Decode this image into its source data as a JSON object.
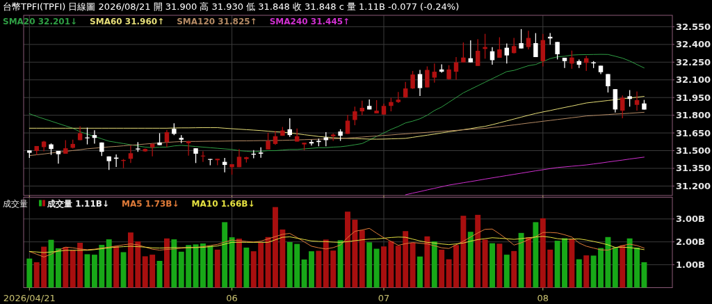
{
  "chart_data": [
    {
      "type": "candlestick",
      "title": "台幣TPFI(TPFI)  日線圖  2026/08/21  開 31.900  高 31.930  低 31.848  收 31.848 c  量 1.11B  -0.077 (-0.24%)",
      "categories": [
        "2026/04/21",
        null,
        null,
        null,
        null,
        null,
        null,
        null,
        null,
        null,
        null,
        null,
        null,
        null,
        null,
        null,
        null,
        null,
        null,
        null,
        null,
        null,
        null,
        null,
        null,
        null,
        null,
        null,
        "06",
        null,
        null,
        null,
        null,
        null,
        null,
        null,
        null,
        null,
        null,
        null,
        null,
        null,
        null,
        null,
        null,
        null,
        null,
        null,
        null,
        "07",
        null,
        null,
        null,
        null,
        null,
        null,
        null,
        null,
        null,
        null,
        null,
        null,
        null,
        null,
        null,
        null,
        null,
        null,
        null,
        null,
        null,
        "08",
        null,
        null,
        null,
        null,
        null,
        null,
        null,
        null,
        null,
        null,
        null,
        null,
        null,
        null
      ],
      "ohlc": [
        [
          31.502,
          31.502,
          31.439,
          31.482
        ],
        [
          31.498,
          31.539,
          31.464,
          31.539
        ],
        [
          31.53,
          31.583,
          31.494,
          31.577
        ],
        [
          31.553,
          31.561,
          31.464,
          31.514
        ],
        [
          31.498,
          31.498,
          31.389,
          31.47
        ],
        [
          31.474,
          31.589,
          31.474,
          31.52
        ],
        [
          31.524,
          31.593,
          31.518,
          31.557
        ],
        [
          31.589,
          31.707,
          31.589,
          31.648
        ],
        [
          31.612,
          31.695,
          31.553,
          31.608
        ],
        [
          31.632,
          31.672,
          31.559,
          31.608
        ],
        [
          31.569,
          31.569,
          31.455,
          31.49
        ],
        [
          31.451,
          31.451,
          31.336,
          31.411
        ],
        [
          31.441,
          31.468,
          31.362,
          31.431
        ],
        [
          31.413,
          31.429,
          31.352,
          31.421
        ],
        [
          31.431,
          31.543,
          31.395,
          31.478
        ],
        [
          31.518,
          31.573,
          31.49,
          31.51
        ],
        [
          31.494,
          31.518,
          31.49,
          31.514
        ],
        [
          31.528,
          31.563,
          31.451,
          31.557
        ],
        [
          31.569,
          31.648,
          31.547,
          31.547
        ],
        [
          31.573,
          31.676,
          31.53,
          31.656
        ],
        [
          31.685,
          31.731,
          31.632,
          31.642
        ],
        [
          31.608,
          31.632,
          31.563,
          31.593
        ],
        [
          31.563,
          31.583,
          31.458,
          31.579
        ],
        [
          31.52,
          31.52,
          31.395,
          31.474
        ],
        [
          31.455,
          31.494,
          31.405,
          31.458
        ],
        [
          31.429,
          31.429,
          31.376,
          31.425
        ],
        [
          31.419,
          31.431,
          31.376,
          31.431
        ],
        [
          31.405,
          31.438,
          31.316,
          31.379
        ],
        [
          31.36,
          31.385,
          31.296,
          31.385
        ],
        [
          31.36,
          31.514,
          31.36,
          31.448
        ],
        [
          31.429,
          31.448,
          31.399,
          31.444
        ],
        [
          31.474,
          31.504,
          31.435,
          31.466
        ],
        [
          31.484,
          31.529,
          31.44,
          31.474
        ],
        [
          31.51,
          31.652,
          31.51,
          31.583
        ],
        [
          31.557,
          31.667,
          31.549,
          31.622
        ],
        [
          31.626,
          31.701,
          31.626,
          31.671
        ],
        [
          31.681,
          31.774,
          31.616,
          31.632
        ],
        [
          31.577,
          31.687,
          31.577,
          31.622
        ],
        [
          31.553,
          31.567,
          31.504,
          31.567
        ],
        [
          31.573,
          31.592,
          31.543,
          31.561
        ],
        [
          31.583,
          31.602,
          31.537,
          31.573
        ],
        [
          31.612,
          31.656,
          31.537,
          31.589
        ],
        [
          31.622,
          31.646,
          31.583,
          31.636
        ],
        [
          31.662,
          31.681,
          31.583,
          31.626
        ],
        [
          31.642,
          31.804,
          31.642,
          31.754
        ],
        [
          31.76,
          31.873,
          31.715,
          31.833
        ],
        [
          31.833,
          31.924,
          31.8,
          31.863
        ],
        [
          31.879,
          31.934,
          31.849,
          31.849
        ],
        [
          31.816,
          31.928,
          31.816,
          31.839
        ],
        [
          31.806,
          31.898,
          31.806,
          31.879
        ],
        [
          31.879,
          31.948,
          31.833,
          31.912
        ],
        [
          31.912,
          31.997,
          31.904,
          31.932
        ],
        [
          31.952,
          32.082,
          31.948,
          32.027
        ],
        [
          32.027,
          32.175,
          32.023,
          32.145
        ],
        [
          32.149,
          32.184,
          31.963,
          32.03
        ],
        [
          32.036,
          32.214,
          32.036,
          32.184
        ],
        [
          32.119,
          32.238,
          32.076,
          32.169
        ],
        [
          32.188,
          32.232,
          32.161,
          32.169
        ],
        [
          32.106,
          32.224,
          32.102,
          32.188
        ],
        [
          32.169,
          32.293,
          32.102,
          32.248
        ],
        [
          32.248,
          32.417,
          32.248,
          32.289
        ],
        [
          32.283,
          32.435,
          32.248,
          32.248
        ],
        [
          32.218,
          32.445,
          32.218,
          32.346
        ],
        [
          32.362,
          32.49,
          32.279,
          32.378
        ],
        [
          32.342,
          32.378,
          32.228,
          32.267
        ],
        [
          32.287,
          32.461,
          32.287,
          32.358
        ],
        [
          32.372,
          32.408,
          32.238,
          32.307
        ],
        [
          32.327,
          32.455,
          32.323,
          32.386
        ],
        [
          32.411,
          32.53,
          32.366,
          32.366
        ],
        [
          32.378,
          32.516,
          32.358,
          32.455
        ],
        [
          32.411,
          32.496,
          32.293,
          32.293
        ],
        [
          32.259,
          32.49,
          32.214,
          32.437
        ],
        [
          32.465,
          32.496,
          32.398,
          32.451
        ],
        [
          32.421,
          32.421,
          32.273,
          32.317
        ],
        [
          32.287,
          32.287,
          32.2,
          32.259
        ],
        [
          32.238,
          32.348,
          32.194,
          32.289
        ],
        [
          32.259,
          32.273,
          32.2,
          32.228
        ],
        [
          32.244,
          32.303,
          32.175,
          32.283
        ],
        [
          32.248,
          32.259,
          32.2,
          32.24
        ],
        [
          32.22,
          32.22,
          32.149,
          32.165
        ],
        [
          32.149,
          32.149,
          31.993,
          32.046
        ],
        [
          32.021,
          32.021,
          31.823,
          31.849
        ],
        [
          31.839,
          31.967,
          31.774,
          31.948
        ],
        [
          31.961,
          32.013,
          31.873,
          31.938
        ],
        [
          31.888,
          32.001,
          31.839,
          31.928
        ],
        [
          31.9,
          31.93,
          31.848,
          31.848
        ]
      ],
      "colors": [
        "#ffffff",
        "#b01010",
        "#b01010",
        "#ffffff",
        "#ffffff",
        "#b01010",
        "#b01010",
        "#b01010",
        "#ffffff",
        "#ffffff",
        "#ffffff",
        "#ffffff",
        "#ffffff",
        "#b01010",
        "#b01010",
        "#ffffff",
        "#b01010",
        "#b01010",
        "#ffffff",
        "#b01010",
        "#ffffff",
        "#ffffff",
        "#b01010",
        "#ffffff",
        "#b01010",
        "#ffffff",
        "#b01010",
        "#ffffff",
        "#b01010",
        "#b01010",
        "#b01010",
        "#ffffff",
        "#ffffff",
        "#b01010",
        "#b01010",
        "#b01010",
        "#ffffff",
        "#b01010",
        "#b01010",
        "#ffffff",
        "#ffffff",
        "#ffffff",
        "#b01010",
        "#ffffff",
        "#b01010",
        "#b01010",
        "#b01010",
        "#ffffff",
        "#b01010",
        "#b01010",
        "#b01010",
        "#b01010",
        "#b01010",
        "#b01010",
        "#ffffff",
        "#b01010",
        "#b01010",
        "#ffffff",
        "#b01010",
        "#b01010",
        "#b01010",
        "#ffffff",
        "#b01010",
        "#b01010",
        "#ffffff",
        "#b01010",
        "#ffffff",
        "#b01010",
        "#ffffff",
        "#b01010",
        "#ffffff",
        "#b01010",
        "#ffffff",
        "#ffffff",
        "#ffffff",
        "#b01010",
        "#ffffff",
        "#b01010",
        "#ffffff",
        "#ffffff",
        "#ffffff",
        "#ffffff",
        "#b01010",
        "#ffffff",
        "#b01010",
        "#ffffff"
      ],
      "series": [
        {
          "type": "line",
          "name": "SMA20 32.201↓",
          "color": "#2f9e44",
          "values": [
            31.813,
            31.79,
            31.77,
            31.75,
            31.73,
            31.71,
            31.69,
            31.66,
            31.64,
            31.62,
            31.6,
            31.58,
            31.57,
            31.56,
            31.55,
            31.54,
            31.53,
            31.525,
            31.53,
            31.53,
            31.54,
            31.545,
            31.54,
            31.535,
            31.53,
            31.525,
            31.52,
            31.515,
            31.51,
            31.5,
            31.495,
            31.49,
            31.495,
            31.5,
            31.5,
            31.505,
            31.51,
            31.51,
            31.515,
            31.52,
            31.525,
            31.525,
            31.53,
            31.533,
            31.54,
            31.55,
            31.56,
            31.59,
            31.62,
            31.65,
            31.68,
            31.705,
            31.735,
            31.75,
            31.77,
            31.8,
            31.84,
            31.87,
            31.91,
            31.95,
            31.99,
            32.02,
            32.05,
            32.08,
            32.11,
            32.14,
            32.17,
            32.18,
            32.2,
            32.22,
            32.23,
            32.255,
            32.28,
            32.295,
            32.3,
            32.31,
            32.313,
            32.314,
            32.315,
            32.316,
            32.315,
            32.3,
            32.284,
            32.26,
            32.23,
            32.201
          ]
        },
        {
          "type": "line",
          "name": "SMA60 31.960↑",
          "color": "#e6de78",
          "values": [
            31.69,
            31.69,
            31.69,
            31.69,
            31.69,
            31.69,
            31.69,
            31.69,
            31.69,
            31.69,
            31.69,
            31.69,
            31.69,
            31.69,
            31.69,
            31.69,
            31.69,
            31.69,
            31.69,
            31.69,
            31.692,
            31.693,
            31.693,
            31.694,
            31.695,
            31.695,
            31.695,
            31.69,
            31.686,
            31.682,
            31.678,
            31.674,
            31.67,
            31.665,
            31.66,
            31.657,
            31.65,
            31.643,
            31.635,
            31.628,
            31.62,
            31.615,
            31.61,
            31.606,
            31.604,
            31.602,
            31.6,
            31.598,
            31.597,
            31.598,
            31.6,
            31.602,
            31.604,
            31.613,
            31.622,
            31.631,
            31.64,
            31.65,
            31.66,
            31.668,
            31.678,
            31.687,
            31.697,
            31.706,
            31.72,
            31.736,
            31.752,
            31.768,
            31.784,
            31.8,
            31.815,
            31.828,
            31.84,
            31.853,
            31.866,
            31.878,
            31.891,
            31.904,
            31.911,
            31.918,
            31.925,
            31.932,
            31.939,
            31.946,
            31.953,
            31.96
          ]
        },
        {
          "type": "line",
          "name": "SMA120 31.825↑",
          "color": "#b48a64",
          "values": [
            31.458,
            31.465,
            31.472,
            31.48,
            31.487,
            31.494,
            31.501,
            31.508,
            31.516,
            31.521,
            31.526,
            31.532,
            31.536,
            31.541,
            31.546,
            31.551,
            31.556,
            31.561,
            31.565,
            31.57,
            31.574,
            31.577,
            31.578,
            31.578,
            31.579,
            31.58,
            31.58,
            31.581,
            31.582,
            31.583,
            31.583,
            31.584,
            31.585,
            31.585,
            31.586,
            31.587,
            31.589,
            31.591,
            31.593,
            31.595,
            31.597,
            31.599,
            31.601,
            31.603,
            31.607,
            31.611,
            31.615,
            31.62,
            31.624,
            31.629,
            31.633,
            31.638,
            31.642,
            31.647,
            31.651,
            31.655,
            31.66,
            31.664,
            31.668,
            31.672,
            31.676,
            31.681,
            31.685,
            31.689,
            31.696,
            31.703,
            31.711,
            31.718,
            31.726,
            31.734,
            31.741,
            31.749,
            31.756,
            31.764,
            31.771,
            31.779,
            31.786,
            31.794,
            31.798,
            31.802,
            31.806,
            31.81,
            31.813,
            31.817,
            31.821,
            31.825
          ]
        },
        {
          "type": "line",
          "name": "SMA240 31.445↑",
          "color": "#d030d0",
          "values": [
            null,
            null,
            null,
            null,
            null,
            null,
            null,
            null,
            null,
            null,
            null,
            null,
            null,
            null,
            null,
            null,
            null,
            null,
            null,
            null,
            null,
            null,
            null,
            null,
            null,
            null,
            null,
            null,
            null,
            null,
            null,
            null,
            null,
            null,
            null,
            null,
            null,
            null,
            null,
            null,
            null,
            null,
            null,
            null,
            null,
            null,
            null,
            null,
            null,
            null,
            null,
            null,
            31.126,
            31.14,
            31.153,
            31.167,
            31.181,
            31.194,
            31.208,
            31.218,
            31.228,
            31.238,
            31.248,
            31.259,
            31.269,
            31.279,
            31.289,
            31.299,
            31.309,
            31.319,
            31.329,
            31.338,
            31.348,
            31.357,
            31.362,
            31.368,
            31.373,
            31.379,
            31.387,
            31.395,
            31.404,
            31.412,
            31.42,
            31.429,
            31.437,
            31.445
          ]
        }
      ],
      "ylim": [
        31.12,
        32.647
      ],
      "yticks": [
        {
          "value": 31.2,
          "label": "31.200"
        },
        {
          "value": 31.35,
          "label": "31.350"
        },
        {
          "value": 31.5,
          "label": "31.500"
        },
        {
          "value": 31.65,
          "label": "31.650"
        },
        {
          "value": 31.8,
          "label": "31.800"
        },
        {
          "value": 31.95,
          "label": "31.950"
        },
        {
          "value": 32.1,
          "label": "32.100"
        },
        {
          "value": 32.25,
          "label": "32.250"
        },
        {
          "value": 32.4,
          "label": "32.400"
        },
        {
          "value": 32.55,
          "label": "32.550"
        }
      ],
      "grid": true,
      "legend": "top left",
      "tick_labels": "y"
    },
    {
      "type": "bar",
      "title": "成交量",
      "categories": [
        "2026/04/21",
        null,
        null,
        null,
        null,
        null,
        null,
        null,
        null,
        null,
        null,
        null,
        null,
        null,
        null,
        null,
        null,
        null,
        null,
        null,
        null,
        null,
        null,
        null,
        null,
        null,
        null,
        null,
        "06",
        null,
        null,
        null,
        null,
        null,
        null,
        null,
        null,
        null,
        null,
        null,
        null,
        null,
        null,
        null,
        null,
        null,
        null,
        null,
        null,
        "07",
        null,
        null,
        null,
        null,
        null,
        null,
        null,
        null,
        null,
        null,
        null,
        null,
        null,
        null,
        null,
        null,
        null,
        null,
        null,
        null,
        null,
        "08",
        null,
        null,
        null,
        null,
        null,
        null,
        null,
        null,
        null,
        null,
        null,
        null,
        null,
        null
      ],
      "series": [
        {
          "type": "bar",
          "name": "成交量 1.11B↓",
          "values": [
            1.27,
            1.11,
            1.79,
            2.09,
            1.72,
            1.77,
            1.65,
            1.96,
            1.46,
            1.44,
            1.87,
            2.11,
            1.81,
            1.55,
            2.41,
            2.02,
            1.37,
            1.44,
            1.17,
            2.15,
            2.11,
            1.57,
            1.86,
            1.89,
            1.93,
            1.83,
            1.66,
            2.86,
            2.2,
            2.14,
            1.75,
            1.59,
            1.96,
            2.21,
            3.52,
            2.54,
            1.99,
            1.91,
            1.23,
            1.59,
            1.61,
            2.1,
            1.62,
            2.07,
            3.32,
            2.97,
            2.51,
            1.98,
            1.7,
            1.8,
            2.03,
            1.83,
            2.47,
            1.96,
            1.36,
            2.24,
            2.02,
            1.66,
            1.24,
            1.86,
            3.14,
            2.44,
            3.18,
            2.1,
            1.94,
            1.92,
            1.44,
            1.6,
            2.39,
            2.2,
            2.86,
            3.03,
            1.66,
            2.05,
            2.16,
            2.13,
            1.24,
            1.41,
            1.4,
            1.73,
            2.21,
            1.77,
            1.85,
            2.15,
            1.75,
            1.11
          ],
          "colors": [
            "#18a818",
            "#a80f0f",
            "#a80f0f",
            "#18a818",
            "#18a818",
            "#a80f0f",
            "#a80f0f",
            "#a80f0f",
            "#18a818",
            "#18a818",
            "#18a818",
            "#18a818",
            "#a80f0f",
            "#18a818",
            "#a80f0f",
            "#a80f0f",
            "#a80f0f",
            "#a80f0f",
            "#18a818",
            "#a80f0f",
            "#18a818",
            "#18a818",
            "#18a818",
            "#18a818",
            "#18a818",
            "#18a818",
            "#a80f0f",
            "#18a818",
            "#18a818",
            "#a80f0f",
            "#18a818",
            "#a80f0f",
            "#a80f0f",
            "#a80f0f",
            "#a80f0f",
            "#a80f0f",
            "#18a818",
            "#18a818",
            "#18a818",
            "#18a818",
            "#a80f0f",
            "#a80f0f",
            "#a80f0f",
            "#18a818",
            "#a80f0f",
            "#a80f0f",
            "#a80f0f",
            "#18a818",
            "#18a818",
            "#a80f0f",
            "#a80f0f",
            "#a80f0f",
            "#a80f0f",
            "#a80f0f",
            "#18a818",
            "#a80f0f",
            "#18a818",
            "#a80f0f",
            "#a80f0f",
            "#a80f0f",
            "#a80f0f",
            "#18a818",
            "#a80f0f",
            "#a80f0f",
            "#18a818",
            "#a80f0f",
            "#18a818",
            "#a80f0f",
            "#18a818",
            "#a80f0f",
            "#18a818",
            "#a80f0f",
            "#a80f0f",
            "#18a818",
            "#18a818",
            "#a80f0f",
            "#18a818",
            "#a80f0f",
            "#18a818",
            "#18a818",
            "#18a818",
            "#18a818",
            "#a80f0f",
            "#18a818",
            "#18a818",
            "#18a818"
          ]
        },
        {
          "type": "line",
          "name": "MA5 1.73B↓",
          "color": "#e07b39",
          "values": [
            1.58,
            1.46,
            1.34,
            1.46,
            1.63,
            1.77,
            1.74,
            1.69,
            1.66,
            1.68,
            1.73,
            1.77,
            1.82,
            1.87,
            1.91,
            1.87,
            1.77,
            1.68,
            1.64,
            1.67,
            1.69,
            1.72,
            1.75,
            1.76,
            1.79,
            1.84,
            1.89,
            1.99,
            2.08,
            2.05,
            2.02,
            1.99,
            2.03,
            2.13,
            2.23,
            2.33,
            2.37,
            2.19,
            2.0,
            1.81,
            1.74,
            1.69,
            1.75,
            1.86,
            2.19,
            2.46,
            2.52,
            2.59,
            2.38,
            2.18,
            2.02,
            1.85,
            1.92,
            1.97,
            1.94,
            1.91,
            1.83,
            1.74,
            1.71,
            1.87,
            2.03,
            2.21,
            2.39,
            2.55,
            2.56,
            2.35,
            2.12,
            1.86,
            1.96,
            2.1,
            2.23,
            2.41,
            2.41,
            2.39,
            2.31,
            2.21,
            1.95,
            1.81,
            1.73,
            1.65,
            1.64,
            1.74,
            1.84,
            1.9,
            1.84,
            1.73
          ]
        },
        {
          "type": "line",
          "name": "MA10 1.66B↓",
          "color": "#e4e040",
          "values": [
            1.58,
            1.56,
            1.53,
            1.56,
            1.59,
            1.63,
            1.63,
            1.63,
            1.63,
            1.66,
            1.7,
            1.74,
            1.77,
            1.79,
            1.81,
            1.79,
            1.77,
            1.74,
            1.73,
            1.74,
            1.75,
            1.75,
            1.75,
            1.75,
            1.76,
            1.79,
            1.82,
            1.9,
            1.98,
            1.98,
            1.98,
            1.98,
            1.98,
            1.98,
            2.09,
            2.2,
            2.22,
            2.16,
            2.1,
            2.04,
            2.02,
            2.01,
            1.99,
            1.98,
            2.01,
            2.05,
            2.09,
            2.12,
            2.13,
            2.16,
            2.19,
            2.21,
            2.2,
            2.12,
            2.04,
            1.98,
            1.95,
            1.91,
            1.88,
            1.91,
            1.95,
            2.03,
            2.1,
            2.14,
            2.18,
            2.16,
            2.14,
            2.11,
            2.14,
            2.18,
            2.21,
            2.24,
            2.2,
            2.14,
            2.11,
            2.12,
            2.13,
            2.08,
            2.02,
            1.95,
            1.87,
            1.76,
            1.77,
            1.75,
            1.71,
            1.66
          ]
        }
      ],
      "ylim": [
        0,
        3.95
      ],
      "yticks": [
        {
          "value": 1,
          "label": "1.00B"
        },
        {
          "value": 2,
          "label": "2.00B"
        },
        {
          "value": 3,
          "label": "3.00B"
        }
      ],
      "grid": true,
      "legend": "top left"
    }
  ]
}
